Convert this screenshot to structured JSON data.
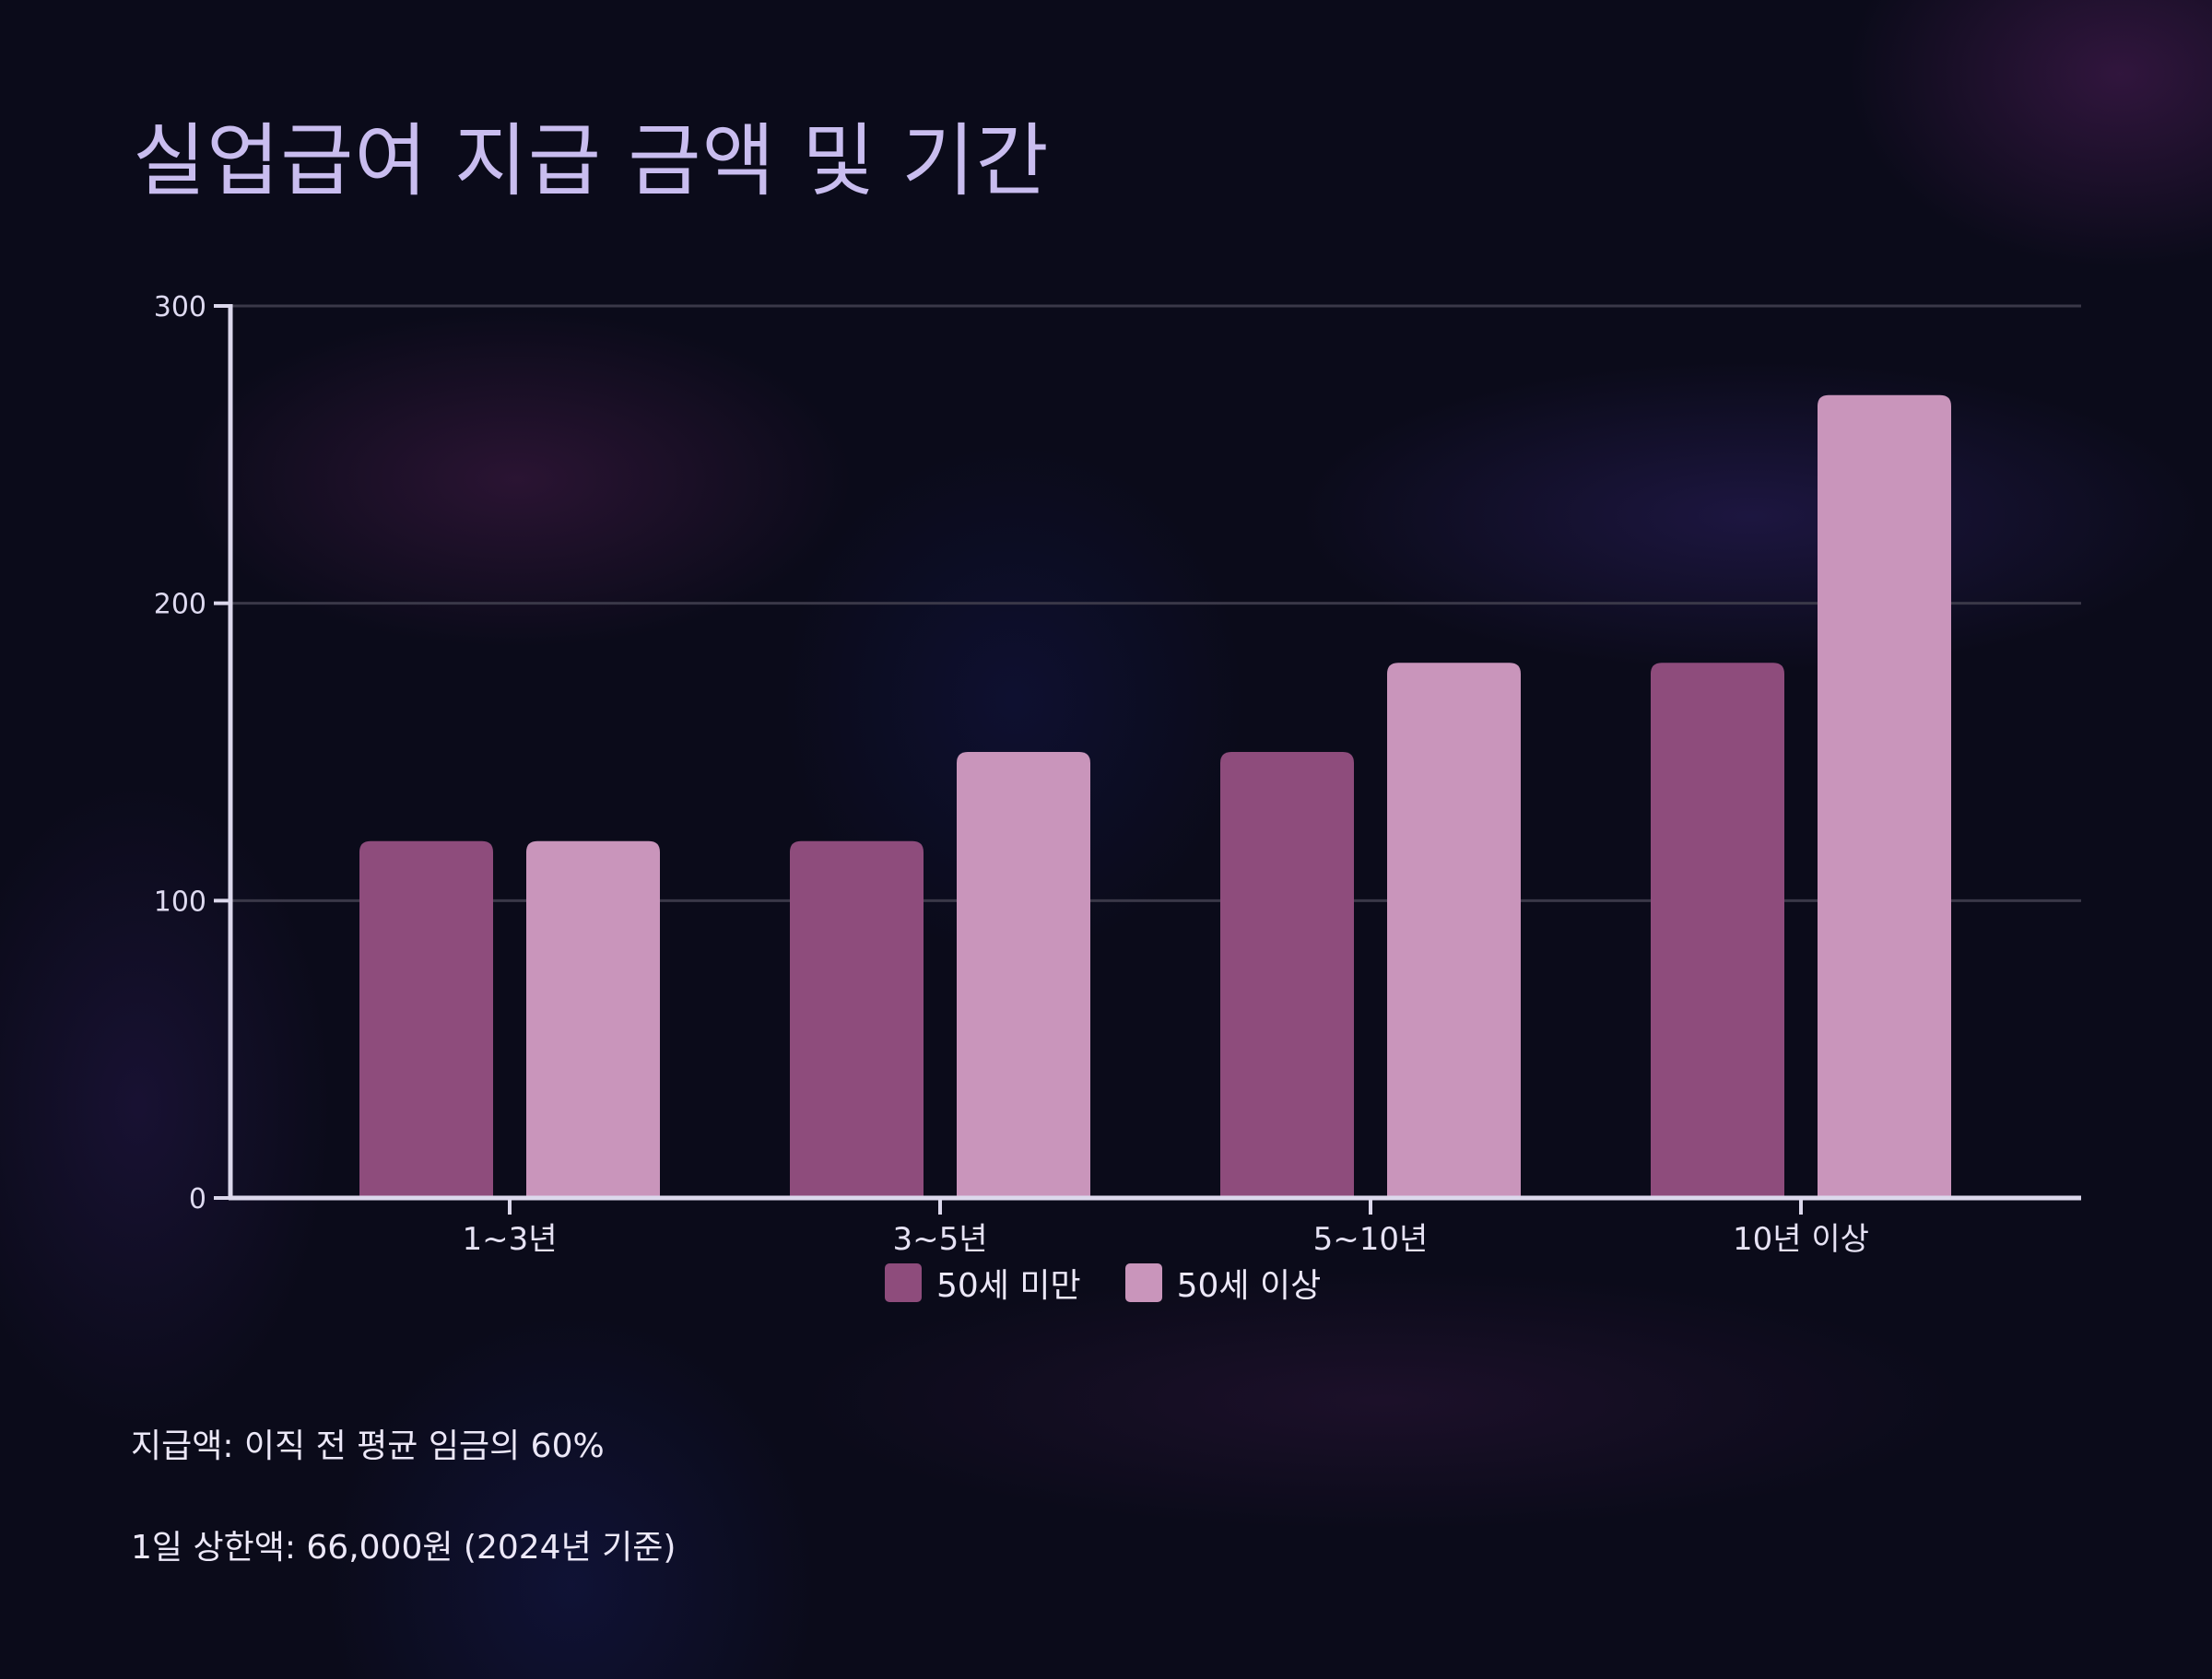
{
  "title": "실업급여 지급 금액 및 기간",
  "colors": {
    "background": "#0b0b1a",
    "title": "#c9bdef",
    "under50": "#8e4c7c",
    "over50": "#c995bb",
    "axis": "#dcd8ec",
    "grid": "#3a3848"
  },
  "legend": {
    "items": [
      {
        "label": "50세 미만",
        "color": "#8e4c7c"
      },
      {
        "label": "50세 이상",
        "color": "#c995bb"
      }
    ]
  },
  "notes": [
    "지급액: 이직 전 평균 임금의 60%",
    "1일 상한액: 66,000원 (2024년 기준)"
  ],
  "chart_data": {
    "type": "bar",
    "title": "실업급여 지급 금액 및 기간",
    "categories": [
      "1~3년",
      "3~5년",
      "5~10년",
      "10년 이상"
    ],
    "series": [
      {
        "name": "50세 미만",
        "values": [
          120,
          120,
          150,
          180
        ]
      },
      {
        "name": "50세 이상",
        "values": [
          120,
          150,
          180,
          270
        ]
      }
    ],
    "xlabel": "",
    "ylabel": "",
    "ylim": [
      0,
      300
    ],
    "yticks": [
      0,
      100,
      200,
      300
    ],
    "grid": true,
    "legend_position": "bottom-center"
  }
}
